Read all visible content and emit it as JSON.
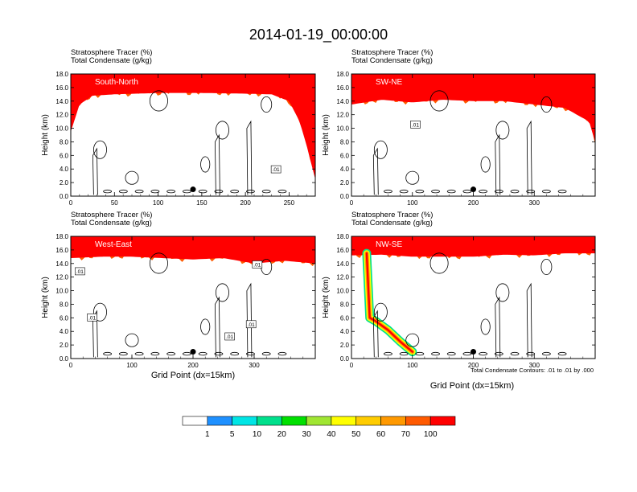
{
  "title": "2014-01-19_00:00:00",
  "panel_header": {
    "line1": "Stratosphere Tracer   (%)",
    "line2": "Total Condensate   (g/kg)"
  },
  "ylabel": "Height (km)",
  "xlabel": "Grid Point (dx=15km)",
  "contour_note": "Total Condensate Contours: .01 to .01 by .000",
  "contour_label": ".01",
  "colorbar": {
    "levels": [
      1,
      5,
      10,
      20,
      30,
      40,
      50,
      60,
      70,
      100
    ],
    "colors": [
      "#ffffff",
      "#1e90ff",
      "#00e5e5",
      "#00e08c",
      "#00e000",
      "#a0e632",
      "#ffff00",
      "#ffcc00",
      "#ff9900",
      "#ff5a00",
      "#ff0000"
    ]
  },
  "chart_data": [
    {
      "type": "heatmap",
      "name": "South-North",
      "xlim": [
        0,
        280
      ],
      "ylim": [
        0,
        18
      ],
      "xticks": [
        0,
        50,
        100,
        150,
        200,
        250
      ],
      "yticks": [
        0,
        2,
        4,
        6,
        8,
        10,
        12,
        14,
        16,
        18
      ],
      "tracer_base_km": [
        [
          0,
          9.5
        ],
        [
          10,
          13.5
        ],
        [
          25,
          14.8
        ],
        [
          50,
          15.0
        ],
        [
          100,
          15.2
        ],
        [
          150,
          15.2
        ],
        [
          200,
          15.1
        ],
        [
          230,
          15.0
        ],
        [
          250,
          14.0
        ],
        [
          262,
          11.0
        ],
        [
          270,
          7.5
        ],
        [
          276,
          4.5
        ],
        [
          280,
          2.5
        ]
      ],
      "marker": [
        140,
        1.0
      ],
      "contour_labels_at": [
        [
          235,
          3.9
        ]
      ]
    },
    {
      "type": "heatmap",
      "name": "SW-NE",
      "xlim": [
        0,
        400
      ],
      "ylim": [
        0,
        18
      ],
      "xticks": [
        0,
        100,
        200,
        300
      ],
      "yticks": [
        0,
        2,
        4,
        6,
        8,
        10,
        12,
        14,
        16,
        18
      ],
      "tracer_base_km": [
        [
          0,
          13.5
        ],
        [
          50,
          14.2
        ],
        [
          100,
          13.8
        ],
        [
          150,
          14.2
        ],
        [
          200,
          14.0
        ],
        [
          250,
          14.0
        ],
        [
          300,
          13.5
        ],
        [
          350,
          13.0
        ],
        [
          390,
          11.0
        ],
        [
          400,
          8.0
        ]
      ],
      "marker": [
        200,
        1.0
      ],
      "contour_labels_at": [
        [
          105,
          10.5
        ]
      ]
    },
    {
      "type": "heatmap",
      "name": "West-East",
      "xlim": [
        0,
        400
      ],
      "ylim": [
        0,
        18
      ],
      "xticks": [
        0,
        100,
        200,
        300
      ],
      "yticks": [
        0,
        2,
        4,
        6,
        8,
        10,
        12,
        14,
        16,
        18
      ],
      "tracer_base_km": [
        [
          0,
          14.8
        ],
        [
          50,
          15.0
        ],
        [
          100,
          15.0
        ],
        [
          150,
          14.8
        ],
        [
          200,
          14.6
        ],
        [
          250,
          14.8
        ],
        [
          300,
          14.0
        ],
        [
          350,
          14.4
        ],
        [
          400,
          14.0
        ]
      ],
      "marker": [
        200,
        1.0
      ],
      "contour_labels_at": [
        [
          15,
          12.8
        ],
        [
          35,
          6.0
        ],
        [
          260,
          3.2
        ],
        [
          295,
          5.0
        ],
        [
          305,
          13.8
        ]
      ]
    },
    {
      "type": "heatmap",
      "name": "NW-SE",
      "xlim": [
        0,
        400
      ],
      "ylim": [
        0,
        18
      ],
      "xticks": [
        0,
        100,
        200,
        300
      ],
      "yticks": [
        0,
        2,
        4,
        6,
        8,
        10,
        12,
        14,
        16,
        18
      ],
      "tracer_base_km": [
        [
          0,
          15.2
        ],
        [
          50,
          15.3
        ],
        [
          100,
          15.0
        ],
        [
          150,
          15.0
        ],
        [
          200,
          15.0
        ],
        [
          250,
          15.3
        ],
        [
          300,
          15.2
        ],
        [
          350,
          15.5
        ],
        [
          400,
          15.5
        ]
      ],
      "intrusion_km": [
        [
          25,
          15.5
        ],
        [
          30,
          6.0
        ],
        [
          40,
          5.5
        ],
        [
          60,
          4.2
        ],
        [
          80,
          2.5
        ],
        [
          100,
          1.0
        ]
      ],
      "marker": [
        200,
        1.0
      ],
      "contour_labels_at": []
    }
  ]
}
